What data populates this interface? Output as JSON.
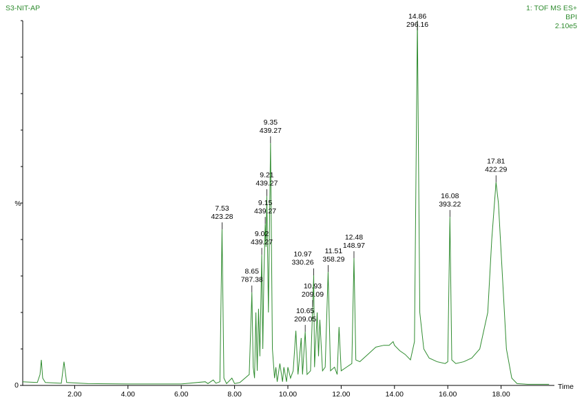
{
  "chart_data": {
    "type": "line",
    "title": "S3-NIT-AP",
    "header_lines": [
      "1: TOF MS ES+",
      "BPI",
      "2.10e5"
    ],
    "x_label": "Time",
    "y_label": "%",
    "xlim": [
      0,
      20
    ],
    "ylim": [
      0,
      100
    ],
    "xticks": [
      {
        "value": 2,
        "label": "2.00"
      },
      {
        "value": 4,
        "label": "4.00"
      },
      {
        "value": 6,
        "label": "6.00"
      },
      {
        "value": 8,
        "label": "8.00"
      },
      {
        "value": 10,
        "label": "10.00"
      },
      {
        "value": 12,
        "label": "12.00"
      },
      {
        "value": 14,
        "label": "14.00"
      },
      {
        "value": 16,
        "label": "16.00"
      },
      {
        "value": 18,
        "label": "18.00"
      }
    ],
    "yticks": [
      0
    ],
    "y_minor_ticks": [
      10,
      20,
      30,
      40,
      50,
      60,
      70,
      80,
      90,
      100
    ],
    "series": [
      {
        "color": "#2e8b2e",
        "x": [
          0.05,
          0.6,
          0.7,
          0.75,
          0.8,
          0.9,
          1.5,
          1.6,
          1.7,
          2.5,
          4,
          6,
          6.9,
          7.0,
          7.2,
          7.3,
          7.45,
          7.53,
          7.6,
          7.7,
          7.9,
          8.0,
          8.2,
          8.55,
          8.65,
          8.7,
          8.75,
          8.8,
          8.85,
          8.9,
          8.95,
          9.02,
          9.06,
          9.1,
          9.15,
          9.18,
          9.21,
          9.27,
          9.35,
          9.42,
          9.5,
          9.55,
          9.6,
          9.7,
          9.8,
          9.85,
          9.95,
          10.0,
          10.1,
          10.2,
          10.3,
          10.38,
          10.5,
          10.55,
          10.65,
          10.72,
          10.85,
          10.93,
          10.97,
          11.0,
          11.1,
          11.15,
          11.2,
          11.3,
          11.4,
          11.51,
          11.6,
          11.75,
          11.85,
          11.92,
          12.0,
          12.2,
          12.4,
          12.48,
          12.55,
          12.7,
          13.0,
          13.3,
          13.6,
          13.8,
          13.95,
          14.0,
          14.2,
          14.4,
          14.6,
          14.75,
          14.86,
          14.95,
          15.1,
          15.3,
          15.6,
          15.9,
          16.0,
          16.08,
          16.15,
          16.3,
          16.6,
          16.9,
          17.2,
          17.5,
          17.65,
          17.81,
          17.9,
          18.05,
          18.2,
          18.4,
          18.6,
          19.0,
          19.8
        ],
        "values": [
          1,
          0.8,
          3,
          7,
          2,
          0.8,
          0.6,
          6.5,
          0.8,
          0.5,
          0.4,
          0.4,
          1,
          0.5,
          1.5,
          0.6,
          1,
          42.8,
          2,
          0.5,
          2,
          0.5,
          0.8,
          3,
          25.5,
          5,
          2,
          20,
          4,
          21,
          8,
          35.8,
          10,
          30,
          44.3,
          38,
          51.9,
          20,
          66.4,
          10,
          2,
          5,
          1,
          6,
          1,
          5,
          1,
          5,
          2,
          4,
          15,
          3,
          13,
          3,
          14.7,
          3,
          4,
          21.5,
          30.2,
          5,
          20,
          8,
          18,
          4,
          5,
          31.1,
          4,
          5,
          3,
          16,
          4,
          5,
          6,
          34.9,
          7,
          6.5,
          8.5,
          10.5,
          11,
          11,
          12,
          11,
          9.5,
          8.5,
          7,
          12,
          100,
          20,
          10,
          7.5,
          6.5,
          6,
          6.5,
          46.2,
          7,
          6,
          6.5,
          7.5,
          10,
          20,
          40,
          55.7,
          50,
          30,
          10,
          2,
          0.5,
          0.3,
          0.3
        ]
      }
    ],
    "peaks": [
      {
        "x": 7.53,
        "mz": 423.28,
        "y": 42.8
      },
      {
        "x": 8.65,
        "mz": 787.38,
        "y": 25.5
      },
      {
        "x": 9.02,
        "mz": 439.27,
        "y": 35.8
      },
      {
        "x": 9.15,
        "mz": 439.27,
        "y": 44.3
      },
      {
        "x": 9.21,
        "mz": 439.27,
        "y": 51.9
      },
      {
        "x": 9.35,
        "mz": 439.27,
        "y": 66.4
      },
      {
        "x": 10.65,
        "mz": 209.05,
        "y": 14.7
      },
      {
        "x": 10.93,
        "mz": 209.09,
        "y": 21.5
      },
      {
        "x": 10.97,
        "mz": 330.26,
        "y": 30.2
      },
      {
        "x": 11.51,
        "mz": 358.29,
        "y": 31.1
      },
      {
        "x": 12.48,
        "mz": 148.97,
        "y": 34.9
      },
      {
        "x": 14.86,
        "mz": 296.16,
        "y": 100
      },
      {
        "x": 16.08,
        "mz": 393.22,
        "y": 46.2
      },
      {
        "x": 17.81,
        "mz": 422.29,
        "y": 55.7
      }
    ]
  }
}
